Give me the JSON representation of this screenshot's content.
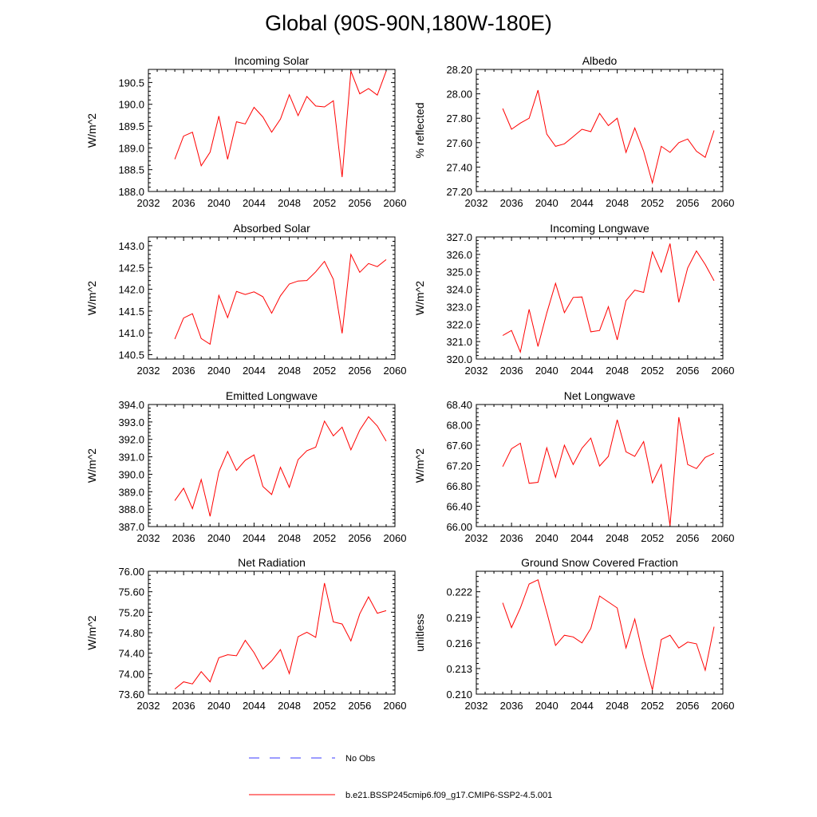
{
  "figure_title": "Global (90S-90N,180W-180E)",
  "legend": {
    "obs_label": "No Obs",
    "model_label": "b.e21.BSSP245cmip6.f09_g17.CMIP6-SSP2-4.5.001",
    "model_color": "#ff0000",
    "obs_color": "#3a3aff"
  },
  "chart_data": [
    {
      "type": "line",
      "title": "Incoming Solar",
      "ylabel": "W/m^2",
      "xlim": [
        2032,
        2060
      ],
      "xticks": [
        2032,
        2036,
        2040,
        2044,
        2048,
        2052,
        2056,
        2060
      ],
      "ylim": [
        188.0,
        190.8
      ],
      "yticks": [
        "188.0",
        "188.5",
        "189.0",
        "189.5",
        "190.0",
        "190.5"
      ],
      "x": [
        2035,
        2036,
        2037,
        2038,
        2039,
        2040,
        2041,
        2042,
        2043,
        2044,
        2045,
        2046,
        2047,
        2048,
        2049,
        2050,
        2051,
        2052,
        2053,
        2054,
        2055,
        2056,
        2057,
        2058,
        2059
      ],
      "series": [
        {
          "color": "#ff0000",
          "values": [
            188.74,
            189.27,
            189.36,
            188.59,
            188.9,
            189.73,
            188.74,
            189.6,
            189.55,
            189.93,
            189.71,
            189.36,
            189.66,
            190.22,
            189.74,
            190.18,
            189.96,
            189.94,
            190.08,
            188.33,
            190.76,
            190.24,
            190.36,
            190.21,
            190.76
          ]
        }
      ]
    },
    {
      "type": "line",
      "title": "Albedo",
      "ylabel": "% reflected",
      "xlim": [
        2032,
        2060
      ],
      "xticks": [
        2032,
        2036,
        2040,
        2044,
        2048,
        2052,
        2056,
        2060
      ],
      "ylim": [
        27.2,
        28.2
      ],
      "yticks": [
        "27.20",
        "27.40",
        "27.60",
        "27.80",
        "28.00",
        "28.20"
      ],
      "x": [
        2035,
        2036,
        2037,
        2038,
        2039,
        2040,
        2041,
        2042,
        2043,
        2044,
        2045,
        2046,
        2047,
        2048,
        2049,
        2050,
        2051,
        2052,
        2053,
        2054,
        2055,
        2056,
        2057,
        2058,
        2059
      ],
      "series": [
        {
          "color": "#ff0000",
          "values": [
            27.88,
            27.71,
            27.76,
            27.8,
            28.03,
            27.67,
            27.57,
            27.59,
            27.65,
            27.71,
            27.69,
            27.84,
            27.74,
            27.8,
            27.52,
            27.72,
            27.53,
            27.27,
            27.57,
            27.52,
            27.6,
            27.63,
            27.53,
            27.48,
            27.7
          ]
        }
      ]
    },
    {
      "type": "line",
      "title": "Absorbed Solar",
      "ylabel": "W/m^2",
      "xlim": [
        2032,
        2060
      ],
      "xticks": [
        2032,
        2036,
        2040,
        2044,
        2048,
        2052,
        2056,
        2060
      ],
      "ylim": [
        140.4,
        143.2
      ],
      "yticks": [
        "140.5",
        "141.0",
        "141.5",
        "142.0",
        "142.5",
        "143.0"
      ],
      "x": [
        2035,
        2036,
        2037,
        2038,
        2039,
        2040,
        2041,
        2042,
        2043,
        2044,
        2045,
        2046,
        2047,
        2048,
        2049,
        2050,
        2051,
        2052,
        2053,
        2054,
        2055,
        2056,
        2057,
        2058,
        2059
      ],
      "series": [
        {
          "color": "#ff0000",
          "values": [
            140.86,
            141.34,
            141.44,
            140.87,
            140.74,
            141.86,
            141.35,
            141.95,
            141.88,
            141.94,
            141.83,
            141.45,
            141.85,
            142.12,
            142.19,
            142.2,
            142.4,
            142.64,
            142.23,
            140.99,
            142.8,
            142.39,
            142.59,
            142.52,
            142.68
          ]
        }
      ]
    },
    {
      "type": "line",
      "title": "Incoming Longwave",
      "ylabel": "W/m^2",
      "xlim": [
        2032,
        2060
      ],
      "xticks": [
        2032,
        2036,
        2040,
        2044,
        2048,
        2052,
        2056,
        2060
      ],
      "ylim": [
        320.0,
        327.0
      ],
      "yticks": [
        "320.0",
        "321.0",
        "322.0",
        "323.0",
        "324.0",
        "325.0",
        "326.0",
        "327.0"
      ],
      "x": [
        2035,
        2036,
        2037,
        2038,
        2039,
        2040,
        2041,
        2042,
        2043,
        2044,
        2045,
        2046,
        2047,
        2048,
        2049,
        2050,
        2051,
        2052,
        2053,
        2054,
        2055,
        2056,
        2057,
        2058,
        2059
      ],
      "series": [
        {
          "color": "#ff0000",
          "values": [
            321.35,
            321.64,
            320.4,
            322.85,
            320.72,
            322.64,
            324.34,
            322.66,
            323.53,
            323.56,
            321.56,
            321.64,
            323.0,
            321.1,
            323.35,
            323.95,
            323.82,
            326.15,
            324.98,
            326.62,
            323.25,
            325.22,
            326.2,
            325.42,
            324.49
          ]
        }
      ]
    },
    {
      "type": "line",
      "title": "Emitted Longwave",
      "ylabel": "W/m^2",
      "xlim": [
        2032,
        2060
      ],
      "xticks": [
        2032,
        2036,
        2040,
        2044,
        2048,
        2052,
        2056,
        2060
      ],
      "ylim": [
        387.0,
        394.0
      ],
      "yticks": [
        "387.0",
        "388.0",
        "389.0",
        "390.0",
        "391.0",
        "392.0",
        "393.0",
        "394.0"
      ],
      "x": [
        2035,
        2036,
        2037,
        2038,
        2039,
        2040,
        2041,
        2042,
        2043,
        2044,
        2045,
        2046,
        2047,
        2048,
        2049,
        2050,
        2051,
        2052,
        2053,
        2054,
        2055,
        2056,
        2057,
        2058,
        2059
      ],
      "series": [
        {
          "color": "#ff0000",
          "values": [
            388.49,
            389.2,
            388.03,
            389.7,
            387.59,
            390.14,
            391.31,
            390.22,
            390.8,
            391.11,
            389.3,
            388.84,
            390.4,
            389.25,
            390.84,
            391.35,
            391.55,
            393.05,
            392.2,
            392.7,
            391.4,
            392.53,
            393.3,
            392.77,
            391.9
          ]
        }
      ]
    },
    {
      "type": "line",
      "title": "Net Longwave",
      "ylabel": "W/m^2",
      "xlim": [
        2032,
        2060
      ],
      "xticks": [
        2032,
        2036,
        2040,
        2044,
        2048,
        2052,
        2056,
        2060
      ],
      "ylim": [
        66.0,
        68.4
      ],
      "yticks": [
        "66.00",
        "66.40",
        "66.80",
        "67.20",
        "67.60",
        "68.00",
        "68.40"
      ],
      "x": [
        2035,
        2036,
        2037,
        2038,
        2039,
        2040,
        2041,
        2042,
        2043,
        2044,
        2045,
        2046,
        2047,
        2048,
        2049,
        2050,
        2051,
        2052,
        2053,
        2054,
        2055,
        2056,
        2057,
        2058,
        2059
      ],
      "series": [
        {
          "color": "#ff0000",
          "values": [
            67.18,
            67.53,
            67.64,
            66.85,
            66.87,
            67.55,
            66.97,
            67.6,
            67.22,
            67.54,
            67.74,
            67.19,
            67.38,
            68.1,
            67.47,
            67.38,
            67.67,
            66.86,
            67.22,
            66.02,
            68.15,
            67.22,
            67.14,
            67.36,
            67.44
          ]
        }
      ]
    },
    {
      "type": "line",
      "title": "Net Radiation",
      "ylabel": "W/m^2",
      "xlim": [
        2032,
        2060
      ],
      "xticks": [
        2032,
        2036,
        2040,
        2044,
        2048,
        2052,
        2056,
        2060
      ],
      "ylim": [
        73.6,
        76.0
      ],
      "yticks": [
        "73.60",
        "74.00",
        "74.40",
        "74.80",
        "75.20",
        "75.60",
        "76.00"
      ],
      "x": [
        2035,
        2036,
        2037,
        2038,
        2039,
        2040,
        2041,
        2042,
        2043,
        2044,
        2045,
        2046,
        2047,
        2048,
        2049,
        2050,
        2051,
        2052,
        2053,
        2054,
        2055,
        2056,
        2057,
        2058,
        2059
      ],
      "series": [
        {
          "color": "#ff0000",
          "values": [
            73.7,
            73.84,
            73.8,
            74.04,
            73.84,
            74.31,
            74.37,
            74.35,
            74.65,
            74.41,
            74.09,
            74.25,
            74.47,
            74.0,
            74.72,
            74.81,
            74.71,
            75.77,
            75.01,
            74.97,
            74.64,
            75.17,
            75.5,
            75.18,
            75.23
          ]
        }
      ]
    },
    {
      "type": "line",
      "title": "Ground Snow Covered Fraction",
      "ylabel": "unitless",
      "xlim": [
        2032,
        2060
      ],
      "xticks": [
        2032,
        2036,
        2040,
        2044,
        2048,
        2052,
        2056,
        2060
      ],
      "ylim": [
        0.21,
        0.2244
      ],
      "yticks": [
        "0.210",
        "0.213",
        "0.216",
        "0.219",
        "0.222"
      ],
      "x": [
        2035,
        2036,
        2037,
        2038,
        2039,
        2040,
        2041,
        2042,
        2043,
        2044,
        2045,
        2046,
        2047,
        2048,
        2049,
        2050,
        2051,
        2052,
        2053,
        2054,
        2055,
        2056,
        2057,
        2058,
        2059
      ],
      "series": [
        {
          "color": "#ff0000",
          "values": [
            0.2207,
            0.2178,
            0.2201,
            0.2229,
            0.2234,
            0.2196,
            0.2157,
            0.2169,
            0.2167,
            0.216,
            0.2177,
            0.2215,
            0.2208,
            0.2201,
            0.2154,
            0.2188,
            0.2143,
            0.2105,
            0.2164,
            0.2169,
            0.2154,
            0.2161,
            0.2159,
            0.2128,
            0.2179
          ]
        }
      ]
    }
  ]
}
